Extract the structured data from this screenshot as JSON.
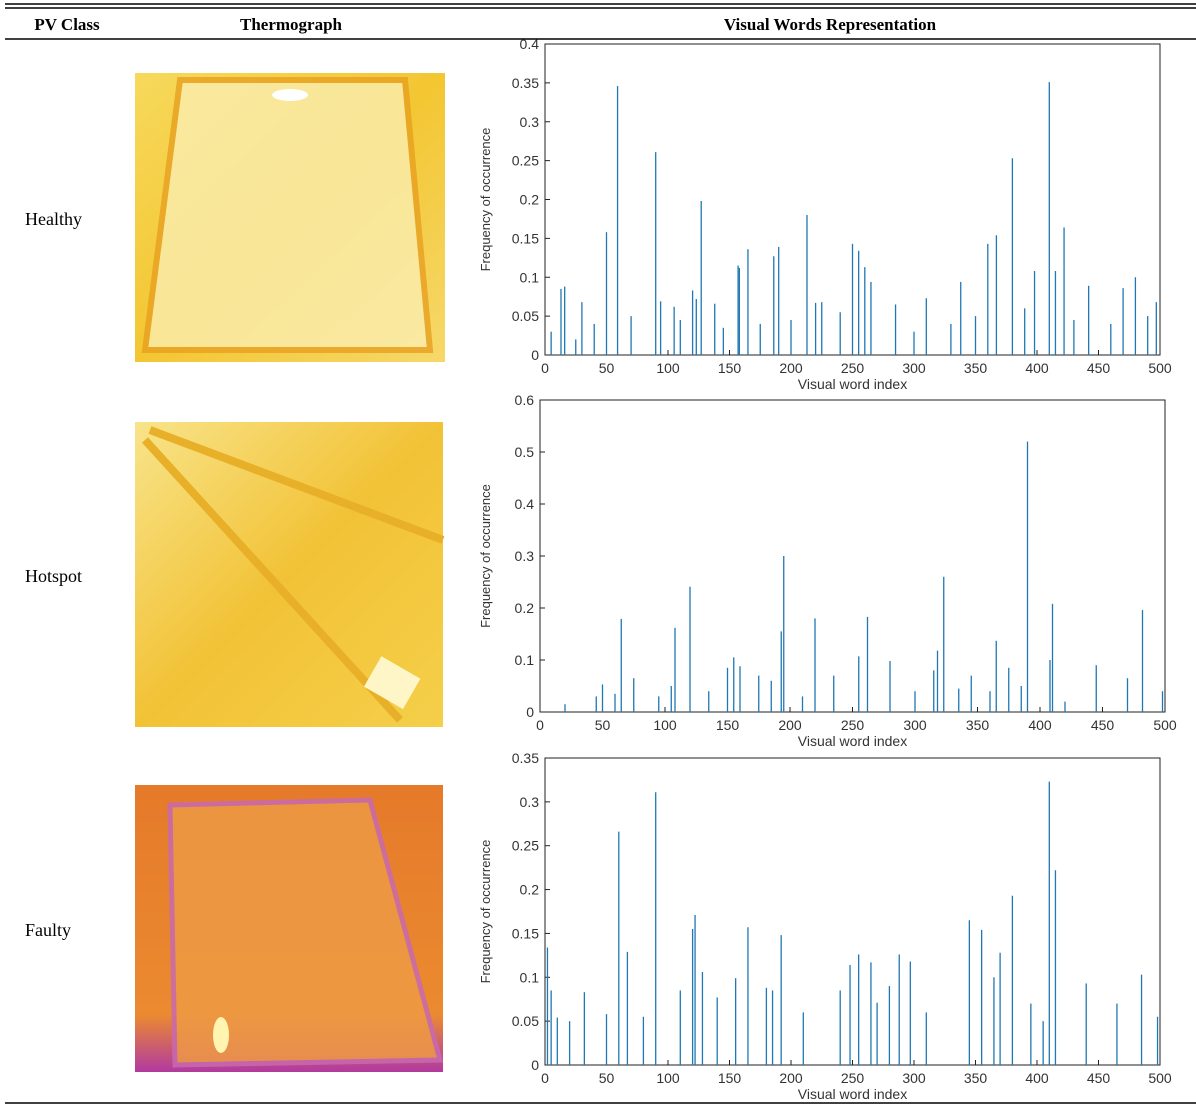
{
  "table": {
    "headers": [
      "PV Class",
      "Thermograph",
      "Visual Words Representation"
    ],
    "rows": [
      {
        "label": "Healthy"
      },
      {
        "label": "Hotspot"
      },
      {
        "label": "Faulty"
      }
    ]
  },
  "chart_data": [
    {
      "type": "bar",
      "xlabel": "Visual word index",
      "ylabel": "Frequency of occurrence",
      "color": "#1f77b4",
      "xlim": [
        0,
        500
      ],
      "ylim": [
        0,
        0.4
      ],
      "xticks": [
        0,
        50,
        100,
        150,
        200,
        250,
        300,
        350,
        400,
        450,
        500
      ],
      "yticks": [
        0,
        0.05,
        0.1,
        0.15,
        0.2,
        0.25,
        0.3,
        0.35,
        0.4
      ],
      "x": [
        5,
        13,
        16,
        25,
        30,
        40,
        50,
        59,
        70,
        90,
        94,
        105,
        110,
        120,
        123,
        127,
        138,
        145,
        157,
        158,
        165,
        175,
        186,
        190,
        200,
        213,
        220,
        225,
        240,
        250,
        255,
        260,
        265,
        285,
        300,
        310,
        330,
        338,
        350,
        360,
        367,
        380,
        390,
        398,
        410,
        415,
        422,
        430,
        442,
        460,
        470,
        480,
        490,
        497
      ],
      "values": [
        0.03,
        0.085,
        0.088,
        0.02,
        0.068,
        0.04,
        0.158,
        0.346,
        0.05,
        0.261,
        0.069,
        0.062,
        0.045,
        0.083,
        0.072,
        0.198,
        0.066,
        0.035,
        0.115,
        0.112,
        0.136,
        0.04,
        0.127,
        0.139,
        0.045,
        0.18,
        0.067,
        0.068,
        0.055,
        0.143,
        0.134,
        0.113,
        0.094,
        0.065,
        0.03,
        0.073,
        0.04,
        0.094,
        0.05,
        0.143,
        0.154,
        0.253,
        0.06,
        0.108,
        0.351,
        0.108,
        0.164,
        0.045,
        0.089,
        0.04,
        0.086,
        0.1,
        0.05,
        0.068
      ]
    },
    {
      "type": "bar",
      "xlabel": "Visual word index",
      "ylabel": "Frequency of occurrence",
      "color": "#1f77b4",
      "xlim": [
        0,
        500
      ],
      "ylim": [
        0,
        0.6
      ],
      "xticks": [
        0,
        50,
        100,
        150,
        200,
        250,
        300,
        350,
        400,
        450,
        500
      ],
      "yticks": [
        0,
        0.1,
        0.2,
        0.3,
        0.4,
        0.5,
        0.6
      ],
      "x": [
        20,
        45,
        50,
        60,
        65,
        75,
        95,
        105,
        108,
        120,
        135,
        150,
        155,
        160,
        175,
        185,
        193,
        195,
        210,
        220,
        235,
        255,
        262,
        280,
        300,
        315,
        318,
        323,
        335,
        345,
        360,
        365,
        375,
        385,
        390,
        408,
        410,
        420,
        445,
        470,
        482,
        498
      ],
      "values": [
        0.015,
        0.03,
        0.053,
        0.035,
        0.179,
        0.065,
        0.03,
        0.05,
        0.162,
        0.241,
        0.04,
        0.085,
        0.105,
        0.088,
        0.07,
        0.06,
        0.155,
        0.3,
        0.03,
        0.18,
        0.07,
        0.107,
        0.183,
        0.098,
        0.04,
        0.08,
        0.118,
        0.26,
        0.045,
        0.07,
        0.04,
        0.137,
        0.085,
        0.05,
        0.52,
        0.1,
        0.208,
        0.02,
        0.09,
        0.065,
        0.196,
        0.04
      ]
    },
    {
      "type": "bar",
      "xlabel": "Visual word index",
      "ylabel": "Frequency of occurrence",
      "color": "#1f77b4",
      "xlim": [
        0,
        500
      ],
      "ylim": [
        0,
        0.35
      ],
      "xticks": [
        0,
        50,
        100,
        150,
        200,
        250,
        300,
        350,
        400,
        450,
        500
      ],
      "yticks": [
        0,
        0.05,
        0.1,
        0.15,
        0.2,
        0.25,
        0.3,
        0.35
      ],
      "x": [
        2,
        5,
        10,
        20,
        32,
        50,
        60,
        67,
        80,
        90,
        110,
        120,
        122,
        128,
        140,
        155,
        165,
        180,
        185,
        192,
        210,
        240,
        248,
        255,
        265,
        270,
        280,
        288,
        297,
        310,
        345,
        355,
        365,
        370,
        380,
        395,
        405,
        410,
        415,
        440,
        465,
        485,
        498
      ],
      "values": [
        0.134,
        0.085,
        0.054,
        0.05,
        0.083,
        0.058,
        0.266,
        0.129,
        0.055,
        0.311,
        0.085,
        0.155,
        0.171,
        0.106,
        0.077,
        0.099,
        0.157,
        0.088,
        0.085,
        0.148,
        0.06,
        0.085,
        0.114,
        0.126,
        0.117,
        0.071,
        0.09,
        0.126,
        0.118,
        0.06,
        0.165,
        0.154,
        0.1,
        0.128,
        0.193,
        0.07,
        0.05,
        0.323,
        0.222,
        0.093,
        0.07,
        0.103,
        0.055
      ]
    }
  ]
}
